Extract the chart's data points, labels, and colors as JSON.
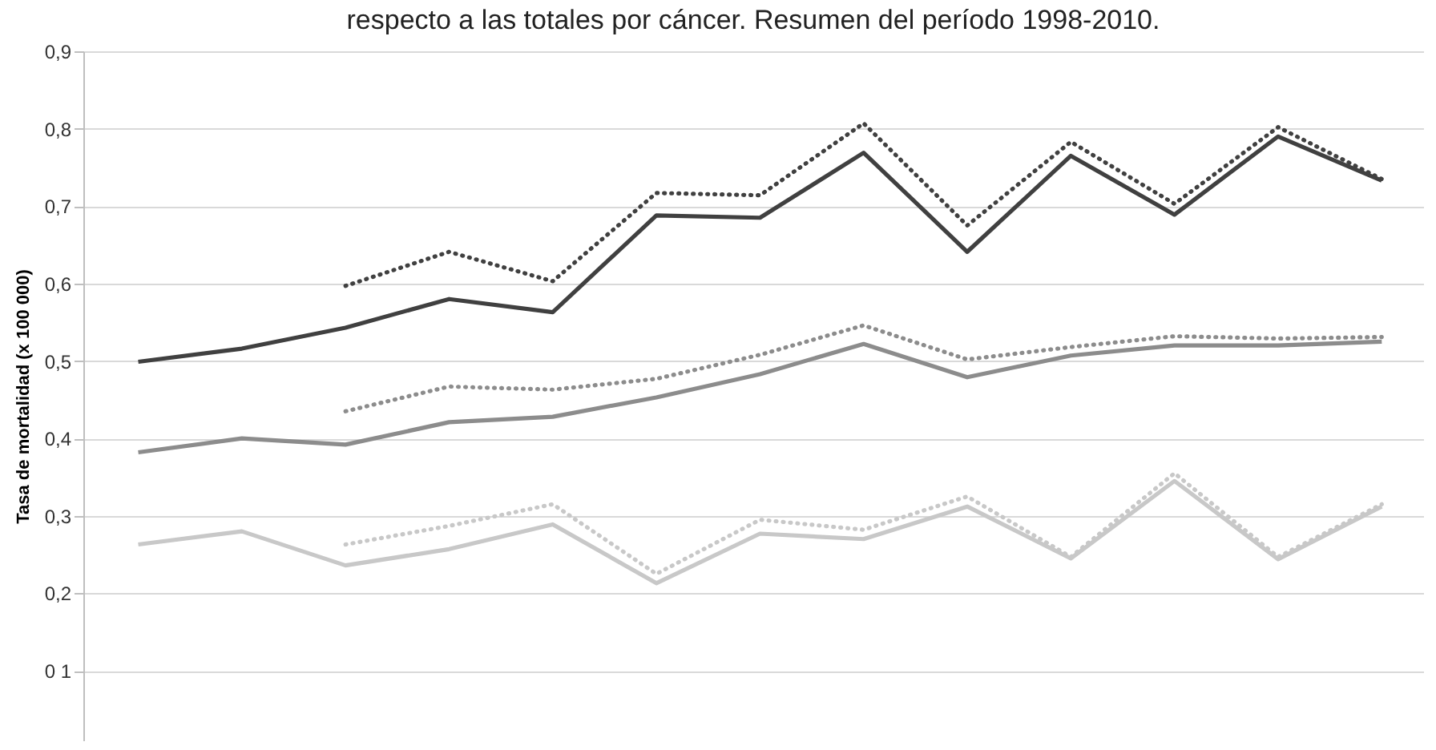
{
  "chart_data": {
    "type": "line",
    "title": "respecto a las totales por cáncer. Resumen del período 1998-2010.",
    "ylabel": "Tasa de mortalidad (x 100 000)",
    "categories": [
      null,
      null,
      null,
      null,
      null,
      null,
      null,
      null,
      null,
      null,
      null,
      null,
      null
    ],
    "ylim": [
      0.01,
      0.9
    ],
    "yticks": [
      {
        "value": 0.1,
        "label": "0 1"
      },
      {
        "value": 0.2,
        "label": "0,2"
      },
      {
        "value": 0.3,
        "label": "0,3"
      },
      {
        "value": 0.4,
        "label": "0,4"
      },
      {
        "value": 0.5,
        "label": "0,5"
      },
      {
        "value": 0.6,
        "label": "0,6"
      },
      {
        "value": 0.7,
        "label": "0,7"
      },
      {
        "value": 0.8,
        "label": "0,8"
      },
      {
        "value": 0.9,
        "label": "0,9"
      }
    ],
    "grid": "y",
    "tick_labels": "y",
    "marker": "none",
    "series": [
      {
        "color": "#404040",
        "line_style": "solid",
        "values": [
          0.499,
          0.516,
          0.543,
          0.58,
          0.563,
          0.688,
          0.685,
          0.769,
          0.641,
          0.765,
          0.689,
          0.79,
          0.733
        ]
      },
      {
        "color": "#404040",
        "line_style": "dotted",
        "values": [
          null,
          null,
          0.597,
          0.641,
          0.603,
          0.717,
          0.714,
          0.807,
          0.675,
          0.783,
          0.703,
          0.802,
          0.735
        ]
      },
      {
        "color": "#8c8c8c",
        "line_style": "solid",
        "values": [
          0.382,
          0.4,
          0.392,
          0.421,
          0.428,
          0.453,
          0.483,
          0.522,
          0.479,
          0.507,
          0.52,
          0.52,
          0.525
        ]
      },
      {
        "color": "#8c8c8c",
        "line_style": "dotted",
        "values": [
          null,
          null,
          0.435,
          0.467,
          0.463,
          0.477,
          0.508,
          0.546,
          0.502,
          0.518,
          0.532,
          0.529,
          0.531
        ]
      },
      {
        "color": "#c8c8c8",
        "line_style": "solid",
        "values": [
          0.263,
          0.28,
          0.236,
          0.257,
          0.289,
          0.213,
          0.277,
          0.27,
          0.312,
          0.245,
          0.345,
          0.244,
          0.312
        ]
      },
      {
        "color": "#c8c8c8",
        "line_style": "dotted",
        "values": [
          null,
          null,
          0.263,
          0.287,
          0.315,
          0.225,
          0.295,
          0.282,
          0.325,
          0.247,
          0.355,
          0.247,
          0.315
        ]
      }
    ]
  }
}
